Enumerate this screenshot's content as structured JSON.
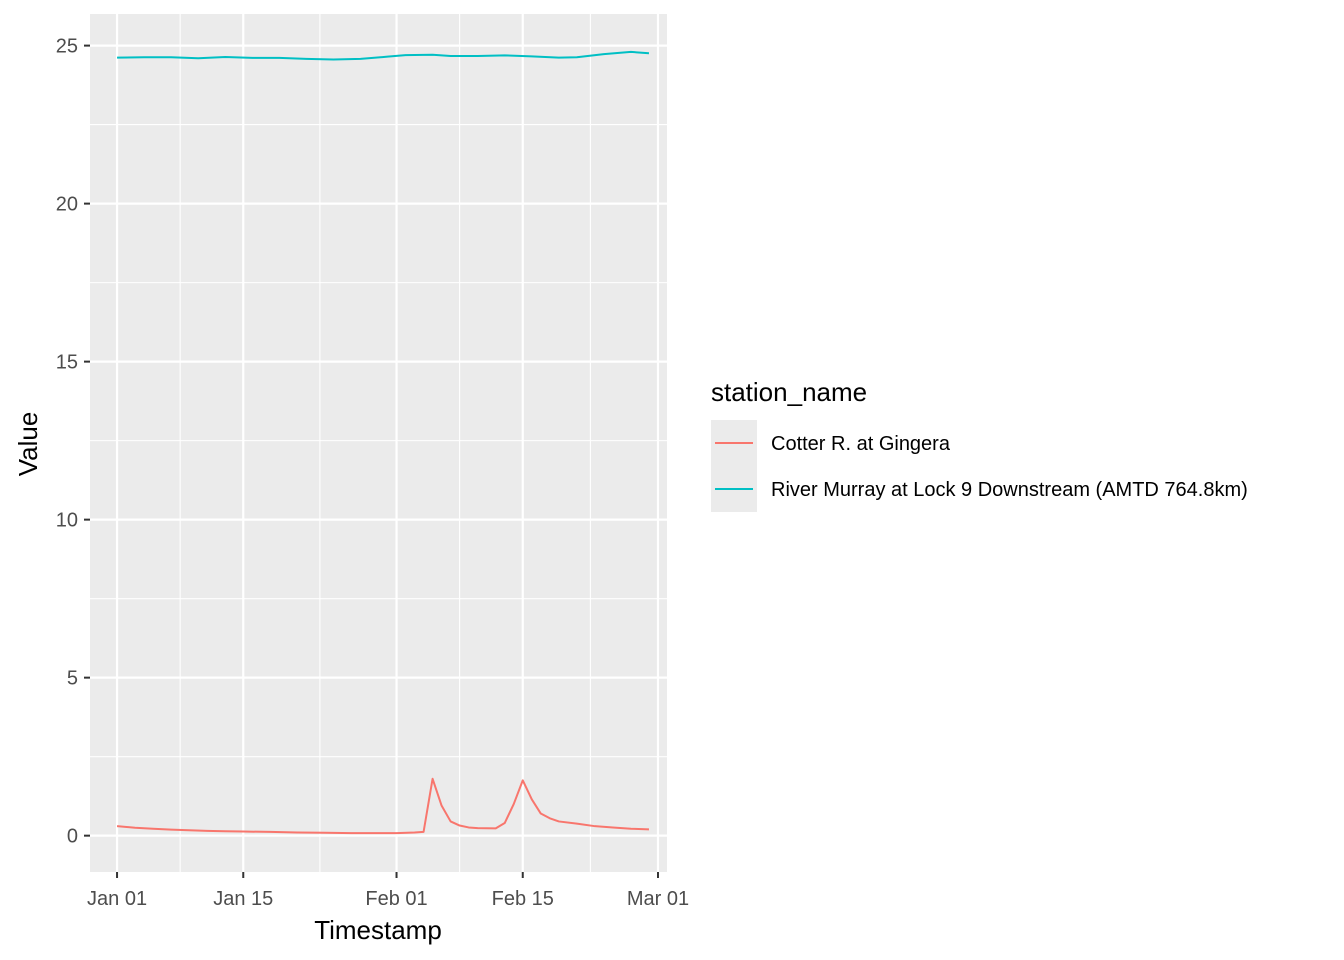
{
  "chart_data": {
    "type": "line",
    "xlabel": "Timestamp",
    "ylabel": "Value",
    "x_ticks": [
      {
        "date": "2024-01-01",
        "label": "Jan 01"
      },
      {
        "date": "2024-01-15",
        "label": "Jan 15"
      },
      {
        "date": "2024-02-01",
        "label": "Feb 01"
      },
      {
        "date": "2024-02-15",
        "label": "Feb 15"
      },
      {
        "date": "2024-03-01",
        "label": "Mar 01"
      }
    ],
    "xlim": [
      "2023-12-29",
      "2024-03-02"
    ],
    "y_ticks": [
      0,
      5,
      10,
      15,
      20,
      25
    ],
    "ylim": [
      -1.15,
      26.0
    ],
    "grid": true,
    "legend": {
      "title": "station_name",
      "position": "right"
    },
    "series": [
      {
        "name": "Cotter R. at Gingera",
        "color": "#F8766D",
        "points": [
          {
            "x": "2024-01-01",
            "y": 0.3
          },
          {
            "x": "2024-01-03",
            "y": 0.25
          },
          {
            "x": "2024-01-05",
            "y": 0.22
          },
          {
            "x": "2024-01-07",
            "y": 0.19
          },
          {
            "x": "2024-01-09",
            "y": 0.17
          },
          {
            "x": "2024-01-11",
            "y": 0.15
          },
          {
            "x": "2024-01-13",
            "y": 0.14
          },
          {
            "x": "2024-01-15",
            "y": 0.13
          },
          {
            "x": "2024-01-18",
            "y": 0.12
          },
          {
            "x": "2024-01-21",
            "y": 0.1
          },
          {
            "x": "2024-01-24",
            "y": 0.09
          },
          {
            "x": "2024-01-27",
            "y": 0.08
          },
          {
            "x": "2024-01-30",
            "y": 0.08
          },
          {
            "x": "2024-02-01",
            "y": 0.08
          },
          {
            "x": "2024-02-03",
            "y": 0.1
          },
          {
            "x": "2024-02-04",
            "y": 0.12
          },
          {
            "x": "2024-02-05",
            "y": 1.8
          },
          {
            "x": "2024-02-06",
            "y": 0.95
          },
          {
            "x": "2024-02-07",
            "y": 0.45
          },
          {
            "x": "2024-02-08",
            "y": 0.32
          },
          {
            "x": "2024-02-09",
            "y": 0.26
          },
          {
            "x": "2024-02-10",
            "y": 0.24
          },
          {
            "x": "2024-02-12",
            "y": 0.23
          },
          {
            "x": "2024-02-13",
            "y": 0.4
          },
          {
            "x": "2024-02-14",
            "y": 1.0
          },
          {
            "x": "2024-02-15",
            "y": 1.75
          },
          {
            "x": "2024-02-16",
            "y": 1.15
          },
          {
            "x": "2024-02-17",
            "y": 0.7
          },
          {
            "x": "2024-02-18",
            "y": 0.55
          },
          {
            "x": "2024-02-19",
            "y": 0.45
          },
          {
            "x": "2024-02-21",
            "y": 0.38
          },
          {
            "x": "2024-02-23",
            "y": 0.3
          },
          {
            "x": "2024-02-25",
            "y": 0.26
          },
          {
            "x": "2024-02-27",
            "y": 0.22
          },
          {
            "x": "2024-02-29",
            "y": 0.2
          }
        ]
      },
      {
        "name": "River Murray at Lock 9 Downstream (AMTD 764.8km)",
        "color": "#00BFC4",
        "points": [
          {
            "x": "2024-01-01",
            "y": 24.62
          },
          {
            "x": "2024-01-04",
            "y": 24.63
          },
          {
            "x": "2024-01-07",
            "y": 24.63
          },
          {
            "x": "2024-01-10",
            "y": 24.6
          },
          {
            "x": "2024-01-13",
            "y": 24.64
          },
          {
            "x": "2024-01-16",
            "y": 24.61
          },
          {
            "x": "2024-01-19",
            "y": 24.61
          },
          {
            "x": "2024-01-22",
            "y": 24.58
          },
          {
            "x": "2024-01-25",
            "y": 24.56
          },
          {
            "x": "2024-01-28",
            "y": 24.58
          },
          {
            "x": "2024-01-31",
            "y": 24.65
          },
          {
            "x": "2024-02-02",
            "y": 24.7
          },
          {
            "x": "2024-02-05",
            "y": 24.71
          },
          {
            "x": "2024-02-07",
            "y": 24.67
          },
          {
            "x": "2024-02-10",
            "y": 24.67
          },
          {
            "x": "2024-02-13",
            "y": 24.69
          },
          {
            "x": "2024-02-16",
            "y": 24.66
          },
          {
            "x": "2024-02-19",
            "y": 24.62
          },
          {
            "x": "2024-02-21",
            "y": 24.63
          },
          {
            "x": "2024-02-24",
            "y": 24.73
          },
          {
            "x": "2024-02-27",
            "y": 24.8
          },
          {
            "x": "2024-02-29",
            "y": 24.76
          }
        ]
      }
    ]
  }
}
